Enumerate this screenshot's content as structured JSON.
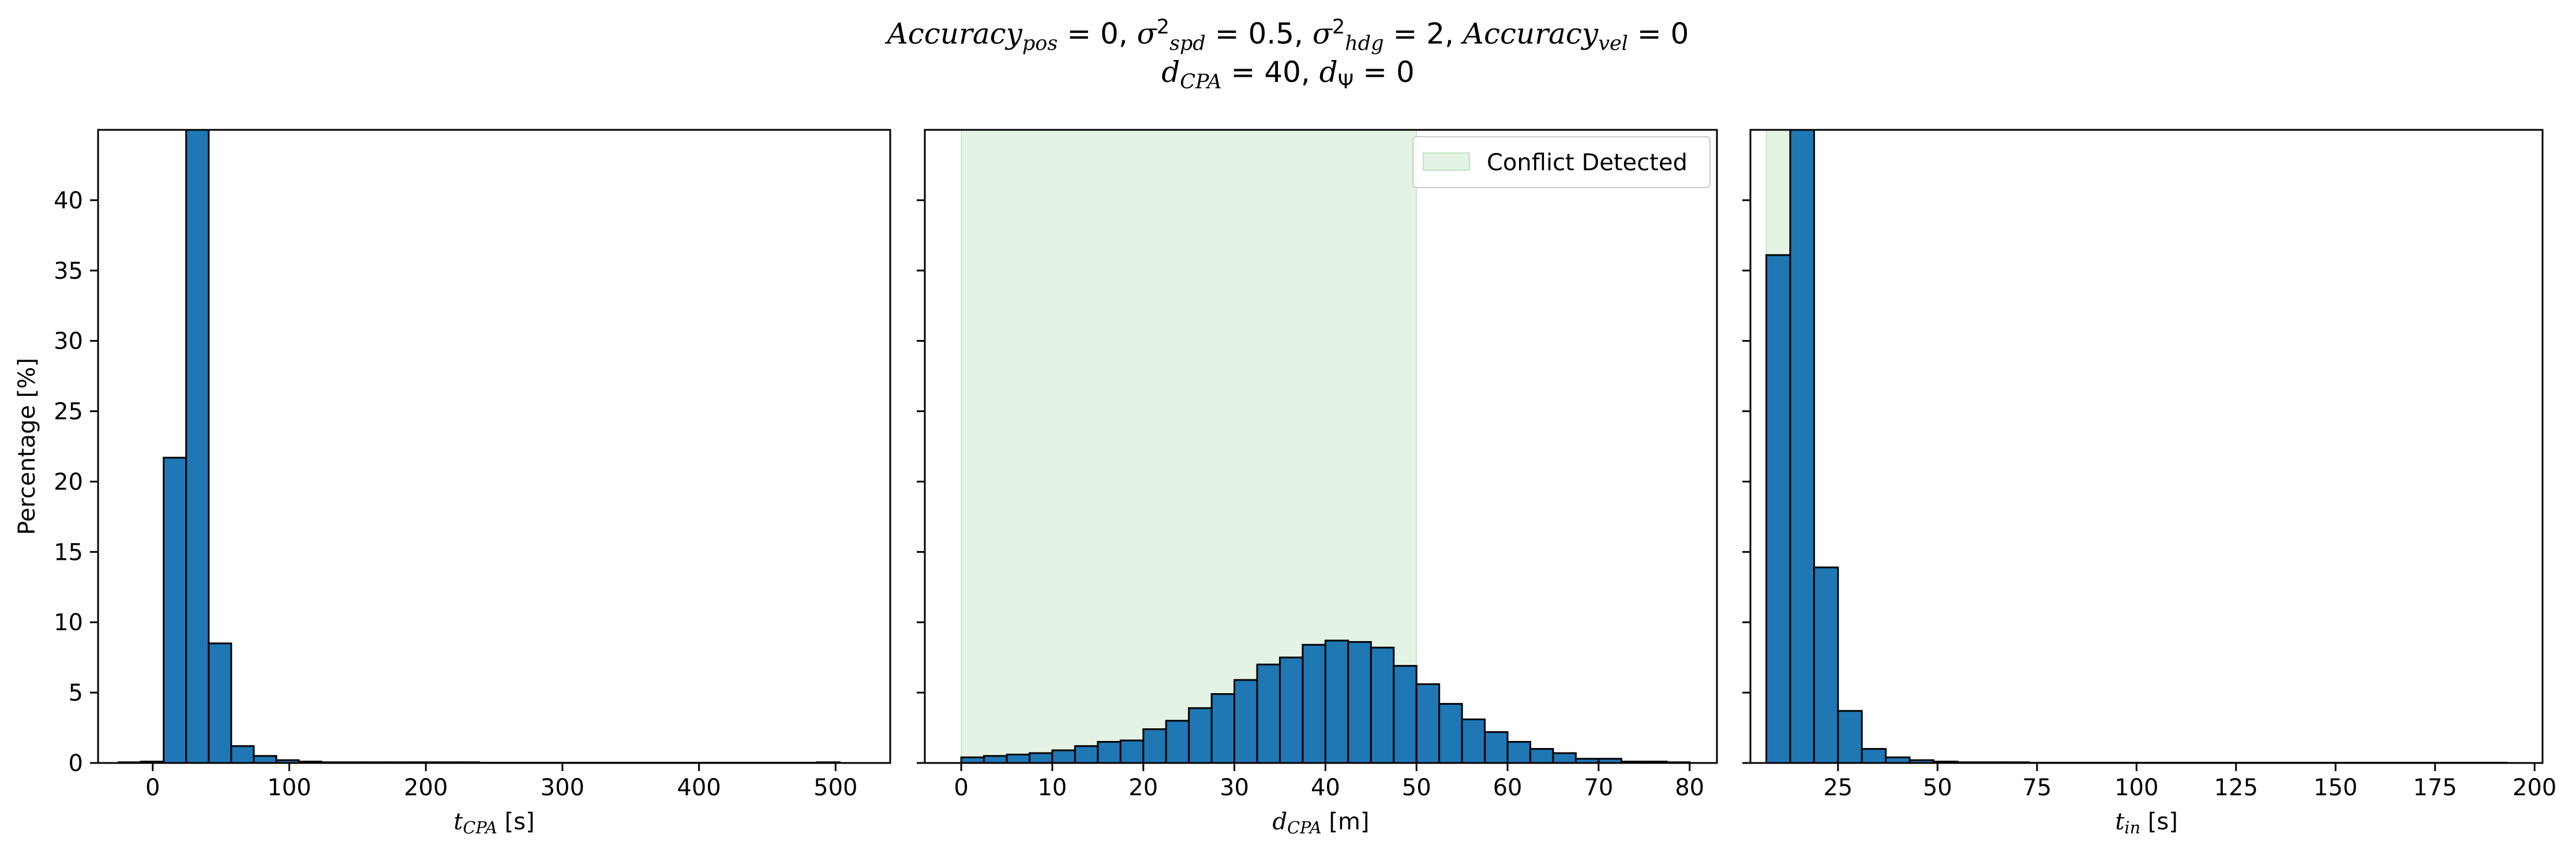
{
  "title": {
    "line1": [
      {
        "t": "Accuracy",
        "it": true
      },
      {
        "t": "pos",
        "sub": true,
        "it": true
      },
      {
        "t": " = 0, "
      },
      {
        "t": "σ",
        "it": true
      },
      {
        "t": "2",
        "sup": true
      },
      {
        "t": "spd",
        "sub": true,
        "it": true
      },
      {
        "t": " = 0.5, "
      },
      {
        "t": "σ",
        "it": true
      },
      {
        "t": "2",
        "sup": true
      },
      {
        "t": "hdg",
        "sub": true,
        "it": true
      },
      {
        "t": " = 2, "
      },
      {
        "t": "Accuracy",
        "it": true
      },
      {
        "t": "vel",
        "sub": true,
        "it": true
      },
      {
        "t": " = 0"
      }
    ],
    "line2": [
      {
        "t": "d",
        "it": true
      },
      {
        "t": "CPA",
        "sub": true,
        "it": true
      },
      {
        "t": " = 40, "
      },
      {
        "t": "d",
        "it": true
      },
      {
        "t": "Ψ",
        "sub": true
      },
      {
        "t": " = 0"
      }
    ]
  },
  "colors": {
    "bar_fill": "#1f77b4",
    "bar_edge": "#000000",
    "conflict_fill": "#2ca02c",
    "axes": "#000000"
  },
  "legend": {
    "label": "Conflict Detected",
    "location": "upper right",
    "panel": 1
  },
  "chart_data": [
    {
      "type": "bar",
      "histogram": true,
      "xlabel": [
        {
          "t": "t",
          "it": true
        },
        {
          "t": "CPA",
          "sub": true,
          "it": true
        },
        {
          "t": " [s]"
        }
      ],
      "ylabel": "Percentage [%]",
      "xlim": [
        -40,
        540
      ],
      "ylim": [
        0,
        45
      ],
      "xticks": [
        0,
        100,
        200,
        300,
        400,
        500
      ],
      "yticks": [
        0,
        5,
        10,
        15,
        20,
        25,
        30,
        35,
        40
      ],
      "bin_start": -25,
      "bin_width": 16.5,
      "values": [
        0.05,
        0.1,
        21.7,
        45.0,
        8.5,
        1.2,
        0.5,
        0.2,
        0.1,
        0.05,
        0.05,
        0.05,
        0.05,
        0.05,
        0.05,
        0.05,
        0.02,
        0.02,
        0.02,
        0.02,
        0.02,
        0.02,
        0.02,
        0.02,
        0.02,
        0.02,
        0.02,
        0.02,
        0.02,
        0.02,
        0.02,
        0.05
      ]
    },
    {
      "type": "bar",
      "histogram": true,
      "xlabel": [
        {
          "t": "d",
          "it": true
        },
        {
          "t": "CPA",
          "sub": true,
          "it": true
        },
        {
          "t": " [m]"
        }
      ],
      "ylabel": "",
      "xlim": [
        -4,
        83
      ],
      "ylim": [
        0,
        45
      ],
      "xticks": [
        0,
        10,
        20,
        30,
        40,
        50,
        60,
        70,
        80
      ],
      "yticks": [
        0,
        5,
        10,
        15,
        20,
        25,
        30,
        35,
        40
      ],
      "bin_start": 0,
      "bin_width": 2.5,
      "values": [
        0.4,
        0.5,
        0.6,
        0.7,
        0.9,
        1.2,
        1.5,
        1.6,
        2.4,
        3.0,
        3.9,
        4.9,
        5.9,
        7.0,
        7.5,
        8.4,
        8.7,
        8.6,
        8.2,
        6.9,
        5.6,
        4.2,
        3.1,
        2.2,
        1.5,
        1.0,
        0.7,
        0.3,
        0.3,
        0.1,
        0.1,
        0.05
      ],
      "shaded_region": [
        0,
        50
      ]
    },
    {
      "type": "bar",
      "histogram": true,
      "xlabel": [
        {
          "t": "t",
          "it": true
        },
        {
          "t": "in",
          "sub": true,
          "it": true
        },
        {
          "t": " [s]"
        }
      ],
      "ylabel": "",
      "xlim": [
        3,
        202
      ],
      "ylim": [
        0,
        45
      ],
      "xticks": [
        25,
        50,
        75,
        100,
        125,
        150,
        175,
        200
      ],
      "tick_labels": [
        "25",
        "50",
        "75",
        "100",
        "125",
        "150",
        "175",
        "200"
      ],
      "yticks": [
        0,
        5,
        10,
        15,
        20,
        25,
        30,
        35,
        40
      ],
      "bin_start": 7,
      "bin_width": 6,
      "values": [
        36.1,
        45.0,
        13.9,
        3.7,
        1.0,
        0.4,
        0.2,
        0.1,
        0.05,
        0.05,
        0.05,
        0.02,
        0.02,
        0.02,
        0.02,
        0.02,
        0.02,
        0.02,
        0.02,
        0.02,
        0.02,
        0.02,
        0.02,
        0.02,
        0.02,
        0.02,
        0.02,
        0.02,
        0.02,
        0.02,
        0.02
      ],
      "shaded_region": [
        7,
        16
      ]
    }
  ]
}
